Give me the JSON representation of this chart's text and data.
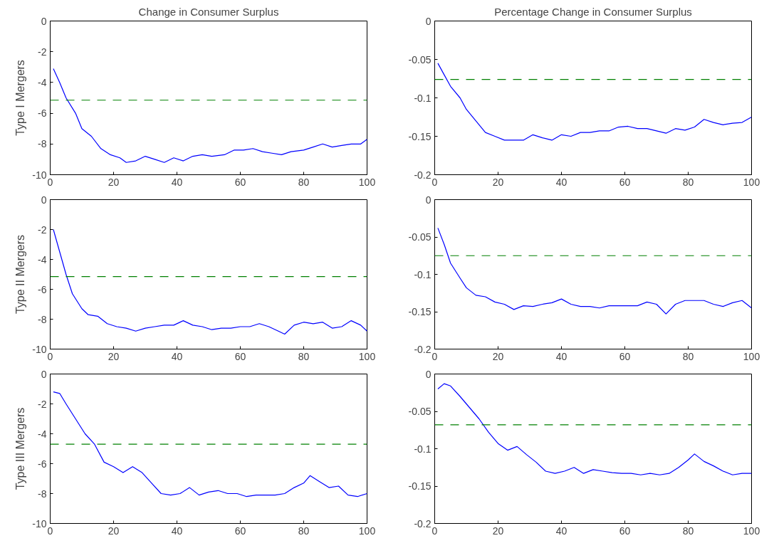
{
  "chart_data": [
    {
      "type": "line",
      "title": "Change in Consumer Surplus",
      "ylabel": "Type I Mergers",
      "xlim": [
        0,
        100
      ],
      "ylim": [
        -10,
        0
      ],
      "xticks": [
        0,
        20,
        40,
        60,
        80,
        100
      ],
      "yticks": [
        -10,
        -8,
        -6,
        -4,
        -2,
        0
      ],
      "x": [
        1,
        3,
        5,
        8,
        10,
        13,
        16,
        19,
        22,
        24,
        27,
        30,
        33,
        36,
        39,
        42,
        45,
        48,
        51,
        55,
        58,
        61,
        64,
        67,
        70,
        73,
        76,
        80,
        83,
        86,
        89,
        92,
        95,
        98,
        100
      ],
      "series": [
        {
          "color": "#0000ff",
          "values": [
            -3.1,
            -4.0,
            -5.0,
            -6.0,
            -7.0,
            -7.5,
            -8.3,
            -8.7,
            -8.9,
            -9.2,
            -9.1,
            -8.8,
            -9.0,
            -9.2,
            -8.9,
            -9.1,
            -8.8,
            -8.7,
            -8.8,
            -8.7,
            -8.4,
            -8.4,
            -8.3,
            -8.5,
            -8.6,
            -8.7,
            -8.5,
            -8.4,
            -8.2,
            -8.0,
            -8.2,
            -8.1,
            -8.0,
            -8.0,
            -7.7
          ]
        }
      ],
      "ref_lines": [
        {
          "axis": "y",
          "value": -5.15,
          "color": "#008000",
          "line_style": "dashed"
        }
      ]
    },
    {
      "type": "line",
      "title": "Percentage Change in Consumer Surplus",
      "xlim": [
        0,
        100
      ],
      "ylim": [
        -0.2,
        0
      ],
      "xticks": [
        0,
        20,
        40,
        60,
        80,
        100
      ],
      "yticks": [
        -0.2,
        -0.15,
        -0.1,
        -0.05,
        0
      ],
      "x": [
        1,
        3,
        5,
        8,
        10,
        13,
        16,
        19,
        22,
        25,
        28,
        31,
        34,
        37,
        40,
        43,
        46,
        49,
        52,
        55,
        58,
        61,
        64,
        67,
        70,
        73,
        76,
        79,
        82,
        85,
        88,
        91,
        94,
        97,
        100
      ],
      "series": [
        {
          "color": "#0000ff",
          "values": [
            -0.055,
            -0.07,
            -0.085,
            -0.1,
            -0.115,
            -0.13,
            -0.145,
            -0.15,
            -0.155,
            -0.155,
            -0.155,
            -0.148,
            -0.152,
            -0.155,
            -0.148,
            -0.15,
            -0.145,
            -0.145,
            -0.143,
            -0.143,
            -0.138,
            -0.137,
            -0.14,
            -0.14,
            -0.143,
            -0.146,
            -0.14,
            -0.142,
            -0.138,
            -0.128,
            -0.132,
            -0.135,
            -0.133,
            -0.132,
            -0.125
          ]
        }
      ],
      "ref_lines": [
        {
          "axis": "y",
          "value": -0.076,
          "color": "#008000",
          "line_style": "dashed"
        }
      ]
    },
    {
      "type": "line",
      "ylabel": "Type II Mergers",
      "xlim": [
        0,
        100
      ],
      "ylim": [
        -10,
        0
      ],
      "xticks": [
        0,
        20,
        40,
        60,
        80,
        100
      ],
      "yticks": [
        -10,
        -8,
        -6,
        -4,
        -2,
        0
      ],
      "x": [
        1,
        3,
        5,
        7,
        10,
        12,
        15,
        18,
        21,
        24,
        27,
        30,
        33,
        36,
        39,
        42,
        45,
        48,
        51,
        54,
        57,
        60,
        63,
        66,
        69,
        72,
        74,
        77,
        80,
        83,
        86,
        89,
        92,
        95,
        98,
        100
      ],
      "series": [
        {
          "color": "#0000ff",
          "values": [
            -2.0,
            -3.5,
            -5.0,
            -6.3,
            -7.3,
            -7.7,
            -7.8,
            -8.3,
            -8.5,
            -8.6,
            -8.8,
            -8.6,
            -8.5,
            -8.4,
            -8.4,
            -8.1,
            -8.4,
            -8.5,
            -8.7,
            -8.6,
            -8.6,
            -8.5,
            -8.5,
            -8.3,
            -8.5,
            -8.8,
            -9.0,
            -8.4,
            -8.2,
            -8.3,
            -8.2,
            -8.6,
            -8.5,
            -8.1,
            -8.4,
            -8.8
          ]
        }
      ],
      "ref_lines": [
        {
          "axis": "y",
          "value": -5.15,
          "color": "#008000",
          "line_style": "dashed"
        }
      ]
    },
    {
      "type": "line",
      "xlim": [
        0,
        100
      ],
      "ylim": [
        -0.2,
        0
      ],
      "xticks": [
        0,
        20,
        40,
        60,
        80,
        100
      ],
      "yticks": [
        -0.2,
        -0.15,
        -0.1,
        -0.05,
        0
      ],
      "x": [
        1,
        3,
        5,
        8,
        10,
        13,
        16,
        19,
        22,
        25,
        28,
        31,
        34,
        37,
        40,
        43,
        46,
        49,
        52,
        55,
        58,
        61,
        64,
        67,
        70,
        73,
        76,
        79,
        82,
        85,
        88,
        91,
        94,
        97,
        100
      ],
      "series": [
        {
          "color": "#0000ff",
          "values": [
            -0.038,
            -0.06,
            -0.085,
            -0.105,
            -0.118,
            -0.128,
            -0.13,
            -0.137,
            -0.14,
            -0.147,
            -0.142,
            -0.143,
            -0.14,
            -0.138,
            -0.133,
            -0.14,
            -0.143,
            -0.143,
            -0.145,
            -0.142,
            -0.142,
            -0.142,
            -0.142,
            -0.137,
            -0.14,
            -0.153,
            -0.14,
            -0.135,
            -0.135,
            -0.135,
            -0.14,
            -0.143,
            -0.138,
            -0.135,
            -0.145
          ]
        }
      ],
      "ref_lines": [
        {
          "axis": "y",
          "value": -0.075,
          "color": "#008000",
          "line_style": "dashed"
        }
      ]
    },
    {
      "type": "line",
      "ylabel": "Type III Mergers",
      "xlim": [
        0,
        100
      ],
      "ylim": [
        -10,
        0
      ],
      "xticks": [
        0,
        20,
        40,
        60,
        80,
        100
      ],
      "yticks": [
        -10,
        -8,
        -6,
        -4,
        -2,
        0
      ],
      "x": [
        1,
        3,
        5,
        8,
        11,
        14,
        17,
        20,
        23,
        26,
        29,
        32,
        35,
        38,
        41,
        44,
        47,
        50,
        53,
        56,
        59,
        62,
        65,
        68,
        71,
        74,
        77,
        80,
        82,
        85,
        88,
        91,
        94,
        97,
        100
      ],
      "series": [
        {
          "color": "#0000ff",
          "values": [
            -1.2,
            -1.3,
            -2.0,
            -3.0,
            -4.0,
            -4.7,
            -5.9,
            -6.2,
            -6.6,
            -6.2,
            -6.6,
            -7.3,
            -8.0,
            -8.1,
            -8.0,
            -7.6,
            -8.1,
            -7.9,
            -7.8,
            -8.0,
            -8.0,
            -8.2,
            -8.1,
            -8.1,
            -8.1,
            -8.0,
            -7.6,
            -7.3,
            -6.8,
            -7.2,
            -7.6,
            -7.5,
            -8.1,
            -8.2,
            -8.0
          ]
        }
      ],
      "ref_lines": [
        {
          "axis": "y",
          "value": -4.7,
          "color": "#008000",
          "line_style": "dashed"
        }
      ]
    },
    {
      "type": "line",
      "xlim": [
        0,
        100
      ],
      "ylim": [
        -0.2,
        0
      ],
      "xticks": [
        0,
        20,
        40,
        60,
        80,
        100
      ],
      "yticks": [
        -0.2,
        -0.15,
        -0.1,
        -0.05,
        0
      ],
      "x": [
        1,
        3,
        5,
        8,
        11,
        14,
        17,
        20,
        23,
        26,
        29,
        32,
        35,
        38,
        41,
        44,
        47,
        50,
        53,
        56,
        59,
        62,
        65,
        68,
        71,
        74,
        77,
        80,
        82,
        85,
        88,
        91,
        94,
        97,
        100
      ],
      "series": [
        {
          "color": "#0000ff",
          "values": [
            -0.02,
            -0.013,
            -0.016,
            -0.03,
            -0.045,
            -0.06,
            -0.078,
            -0.093,
            -0.102,
            -0.097,
            -0.108,
            -0.118,
            -0.13,
            -0.133,
            -0.13,
            -0.125,
            -0.133,
            -0.128,
            -0.13,
            -0.132,
            -0.133,
            -0.133,
            -0.135,
            -0.133,
            -0.135,
            -0.133,
            -0.125,
            -0.115,
            -0.107,
            -0.117,
            -0.123,
            -0.13,
            -0.135,
            -0.133,
            -0.133
          ]
        }
      ],
      "ref_lines": [
        {
          "axis": "y",
          "value": -0.068,
          "color": "#008000",
          "line_style": "dashed"
        }
      ]
    }
  ]
}
